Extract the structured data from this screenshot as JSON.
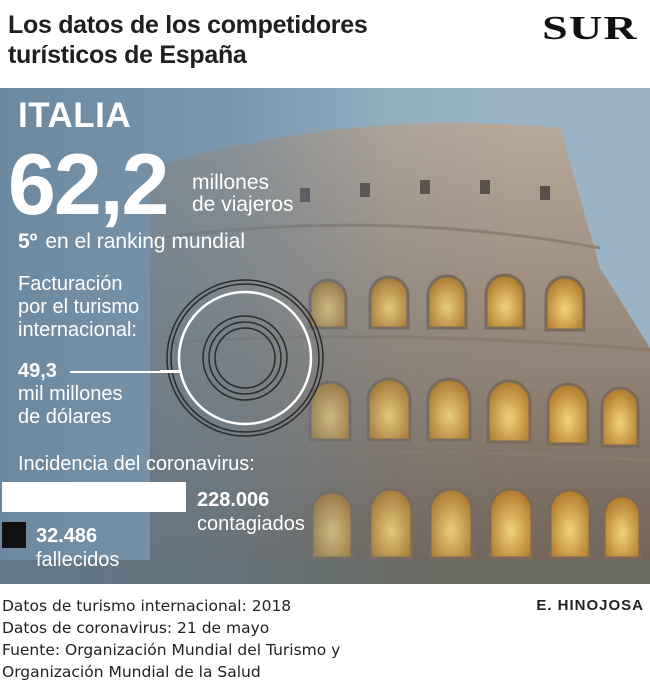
{
  "header": {
    "title_line1": "Los datos de los competidores",
    "title_line2": "turísticos de España",
    "logo": "SUR"
  },
  "country": "ITALIA",
  "travelers": {
    "value": "62,2",
    "unit_line1": "millones",
    "unit_line2": "de viajeros"
  },
  "ranking": {
    "position": "5º",
    "text": "en el ranking mundial"
  },
  "revenue": {
    "label_line1": "Facturación",
    "label_line2": "por el turismo",
    "label_line3": "internacional:",
    "value": "49,3",
    "unit_line1": "mil millones",
    "unit_line2": "de dólares"
  },
  "coronavirus": {
    "heading": "Incidencia del coronavirus:",
    "infected_value": "228.006",
    "infected_label": "contagiados",
    "deaths_value": "32.486",
    "deaths_label": "fallecidos",
    "colors": {
      "infected_bar": "#ffffff",
      "deaths_bar": "#111111"
    }
  },
  "footer": {
    "line1": "Datos de turismo internacional: 2018",
    "line2": "Datos de coronavirus: 21 de mayo",
    "line3": "Fuente: Organización Mundial del Turismo y",
    "line4": "Organización Mundial de la Salud",
    "author": "E. HINOJOSA"
  },
  "background_image": "colosseum-photo"
}
